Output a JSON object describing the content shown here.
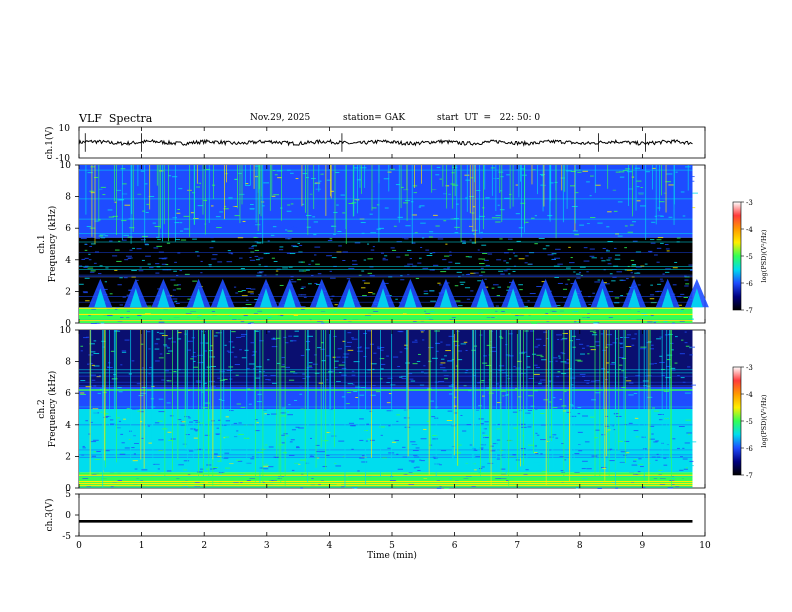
{
  "header": {
    "title": "VLF  Spectra",
    "date": "Nov.29, 2025",
    "station": "station= GAK",
    "start_ut": "start  UT  =   22: 50: 0"
  },
  "colors": {
    "spec_bg": "#0a0f70",
    "spec_dark": "#000000",
    "spec_blue": "#1e4cff",
    "spec_cyan": "#00ddee",
    "spec_green": "#33ff55",
    "spec_yellow": "#ffee00",
    "trace": "#000000"
  },
  "chart_data": [
    {
      "type": "line",
      "name": "ch1-waveform",
      "ylabel": "ch.1(V)",
      "ylim": [
        -10,
        10
      ],
      "yticks": [
        "10",
        "-10"
      ],
      "mean_value": 0,
      "xlim": [
        0,
        10
      ]
    },
    {
      "type": "heatmap",
      "name": "ch1-spectrogram",
      "ylabel": "ch.1\nFrequency (kHz)",
      "ylabel_lines": [
        "ch.1",
        "Frequency  (kHz)"
      ],
      "ylim": [
        0,
        10
      ],
      "yticks": [
        "0",
        "2",
        "4",
        "6",
        "8",
        "10"
      ],
      "xlim": [
        0,
        10
      ],
      "data_end_min": 9.8,
      "colorbar": {
        "label": "log(PSD)(V²/Hz)",
        "range": [
          -7,
          -3
        ],
        "ticks": [
          "-3",
          "-4",
          "-5",
          "-6",
          "-7"
        ]
      },
      "bands_khz": [
        {
          "from": 0.0,
          "to": 1.0,
          "level": "green"
        },
        {
          "from": 1.0,
          "to": 2.9,
          "level": "blue-bursts"
        },
        {
          "from": 2.9,
          "to": 5.4,
          "level": "dark"
        },
        {
          "from": 5.4,
          "to": 10.0,
          "level": "blue"
        }
      ],
      "burst_period_min": 0.5
    },
    {
      "type": "heatmap",
      "name": "ch2-spectrogram",
      "ylabel_lines": [
        "ch.2",
        "Frequency  (kHz)"
      ],
      "ylim": [
        0,
        10
      ],
      "yticks": [
        "0",
        "2",
        "4",
        "6",
        "8",
        "10"
      ],
      "xlim": [
        0,
        10
      ],
      "data_end_min": 9.8,
      "colorbar": {
        "label": "log(PSD)(V²/Hz)",
        "range": [
          -7,
          -3
        ],
        "ticks": [
          "-3",
          "-4",
          "-5",
          "-6",
          "-7"
        ]
      },
      "bands_khz": [
        {
          "from": 0.0,
          "to": 1.0,
          "level": "green"
        },
        {
          "from": 1.0,
          "to": 5.0,
          "level": "cyan"
        },
        {
          "from": 5.0,
          "to": 6.4,
          "level": "blue"
        },
        {
          "from": 6.4,
          "to": 10.0,
          "level": "blue-dark"
        }
      ],
      "tone_khz": 6.2
    },
    {
      "type": "line",
      "name": "ch3-waveform",
      "ylabel": "ch.3(V)",
      "ylim": [
        -5,
        5
      ],
      "yticks": [
        "5",
        "0",
        "-5"
      ],
      "mean_value": -1.5,
      "xlim": [
        0,
        10
      ]
    }
  ],
  "xaxis": {
    "label": "Time  (min)",
    "ticks": [
      "0",
      "1",
      "2",
      "3",
      "4",
      "5",
      "6",
      "7",
      "8",
      "9",
      "10"
    ]
  }
}
